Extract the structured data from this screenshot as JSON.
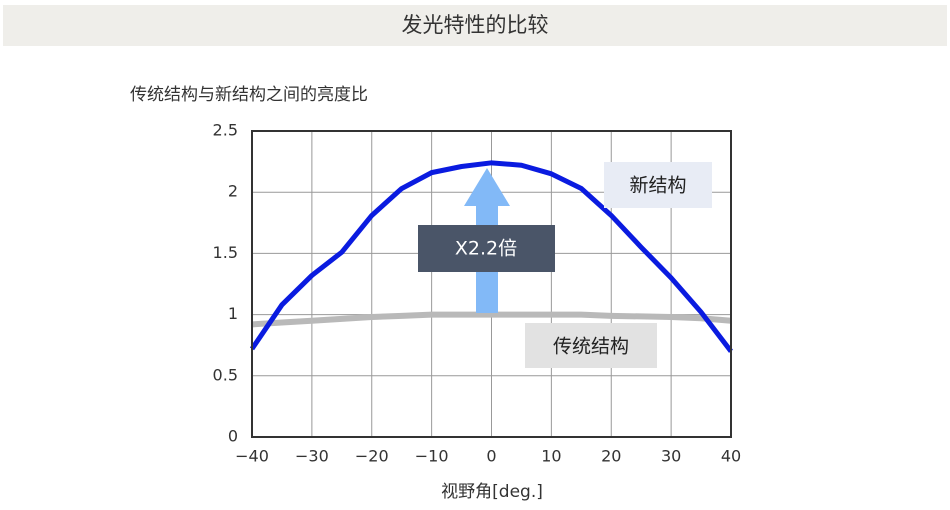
{
  "chart_data": {
    "type": "line",
    "title": "发光特性的比较",
    "subtitle": "传统结构与新结构之间的亮度比",
    "x_label": "视野角[deg.]",
    "x": [
      -40,
      -35,
      -30,
      -25,
      -20,
      -15,
      -10,
      -5,
      0,
      5,
      10,
      15,
      20,
      25,
      30,
      35,
      40
    ],
    "series": [
      {
        "name": "新结构",
        "color": "#0a1be0",
        "values": [
          0.72,
          1.08,
          1.32,
          1.51,
          1.81,
          2.03,
          2.16,
          2.21,
          2.24,
          2.22,
          2.15,
          2.03,
          1.81,
          1.55,
          1.3,
          1.02,
          0.7
        ]
      },
      {
        "name": "传统结构",
        "color": "#b9b9b9",
        "values": [
          0.92,
          0.935,
          0.95,
          0.965,
          0.98,
          0.99,
          1.0,
          1.0,
          1.0,
          1.0,
          1.0,
          1.0,
          0.99,
          0.985,
          0.98,
          0.97,
          0.95
        ]
      }
    ],
    "annotations": [
      "X2.2倍"
    ],
    "xlim": [
      -40,
      40
    ],
    "xticks": [
      {
        "value": -40,
        "label": "−40"
      },
      {
        "value": -30,
        "label": "−30"
      },
      {
        "value": -20,
        "label": "−20"
      },
      {
        "value": -10,
        "label": "−10"
      },
      0,
      10,
      20,
      30,
      40
    ],
    "ylim": [
      0,
      2.5
    ],
    "yticks": [
      0,
      0.5,
      1,
      1.5,
      2,
      2.5
    ],
    "grid": true
  }
}
